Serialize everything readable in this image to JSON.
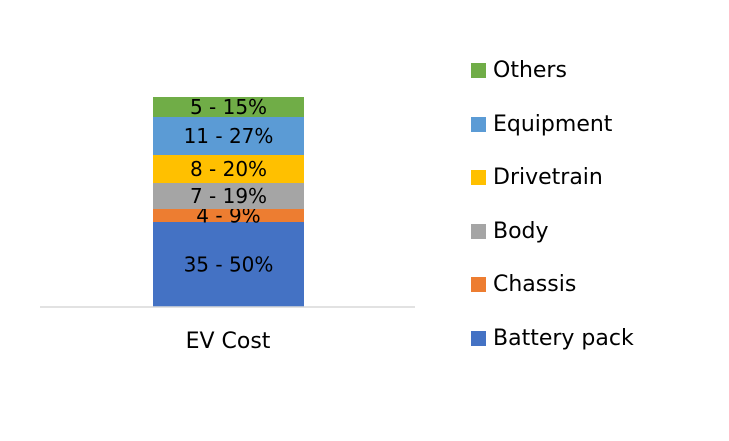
{
  "chart_data": {
    "type": "bar",
    "stacked": true,
    "categories": [
      "EV Cost"
    ],
    "series": [
      {
        "name": "Battery pack",
        "label": "35 - 50%",
        "values": [
          42.5
        ],
        "color": "#4472C4"
      },
      {
        "name": "Chassis",
        "label": "4 - 9%",
        "values": [
          6.5
        ],
        "color": "#ED7D31"
      },
      {
        "name": "Body",
        "label": "7 - 19%",
        "values": [
          13
        ],
        "color": "#A5A5A5"
      },
      {
        "name": "Drivetrain",
        "label": "8 - 20%",
        "values": [
          14
        ],
        "color": "#FFC000"
      },
      {
        "name": "Equipment",
        "label": "11 - 27%",
        "values": [
          19
        ],
        "color": "#5B9BD5"
      },
      {
        "name": "Others",
        "label": "5 - 15%",
        "values": [
          10
        ],
        "color": "#70AD47"
      }
    ],
    "legend_position": "right",
    "legend_order": [
      "Others",
      "Equipment",
      "Drivetrain",
      "Body",
      "Chassis",
      "Battery pack"
    ],
    "grid": false,
    "axis_line_color": "#D9D9D9"
  }
}
